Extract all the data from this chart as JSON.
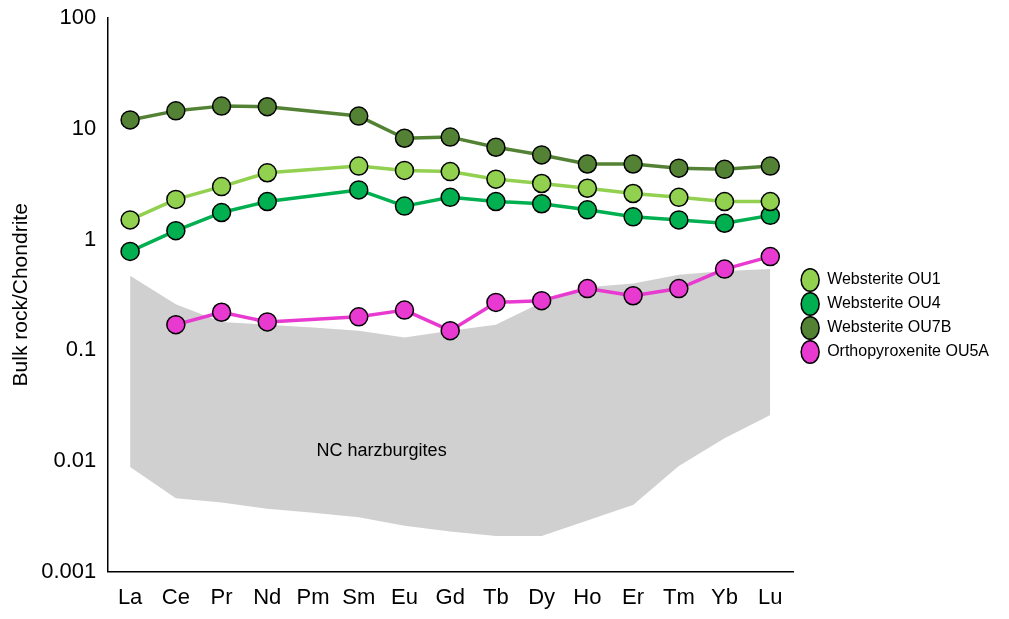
{
  "chart_data": {
    "type": "line",
    "ylabel": "Bulk rock/Chondrite",
    "log": "y",
    "ylim": [
      0.001,
      100
    ],
    "yticks": [
      0.001,
      0.01,
      0.1,
      1,
      10,
      100
    ],
    "categories": [
      "La",
      "Ce",
      "Pr",
      "Nd",
      "Pm",
      "Sm",
      "Eu",
      "Gd",
      "Tb",
      "Dy",
      "Ho",
      "Er",
      "Tm",
      "Yb",
      "Lu"
    ],
    "marker": "circle",
    "annotations": [
      "NC harzburgites"
    ],
    "legend": "right",
    "grid": false,
    "series": [
      {
        "type": "area",
        "color": "#d0d0d0",
        "values": [
          null,
          null,
          null,
          null,
          null,
          null,
          null,
          null,
          null,
          null,
          null,
          null,
          null,
          null,
          null
        ],
        "lower": [
          0.0088,
          0.0046,
          0.0042,
          0.0037,
          0.0034,
          0.0031,
          0.0026,
          0.0023,
          0.0021,
          0.0021,
          0.0029,
          0.004,
          0.009,
          0.016,
          0.026
        ],
        "upper": [
          0.47,
          0.26,
          0.18,
          0.17,
          0.16,
          0.15,
          0.13,
          0.15,
          0.17,
          0.27,
          0.37,
          0.4,
          0.48,
          0.52,
          0.54
        ]
      },
      {
        "name": "Websterite OU1",
        "color": "#92d050",
        "values": [
          1.5,
          2.3,
          3.0,
          4.0,
          null,
          4.6,
          4.2,
          4.1,
          3.5,
          3.2,
          2.9,
          2.6,
          2.4,
          2.2,
          2.2
        ]
      },
      {
        "name": "Websterite OU4",
        "color": "#00b050",
        "values": [
          0.78,
          1.2,
          1.75,
          2.2,
          null,
          2.8,
          2.0,
          2.4,
          2.2,
          2.1,
          1.85,
          1.6,
          1.5,
          1.4,
          1.65
        ]
      },
      {
        "name": "Websterite OU7B",
        "color": "#548235",
        "values": [
          12,
          14.5,
          16,
          15.8,
          null,
          13,
          8.2,
          8.4,
          6.8,
          5.8,
          4.8,
          4.8,
          4.4,
          4.3,
          4.6
        ]
      },
      {
        "name": "Orthopyroxenite OU5A",
        "color": "#e83ad0",
        "values": [
          null,
          0.17,
          0.22,
          0.18,
          null,
          0.2,
          0.23,
          0.15,
          0.27,
          0.28,
          0.36,
          0.31,
          0.36,
          0.54,
          0.7
        ]
      }
    ]
  }
}
